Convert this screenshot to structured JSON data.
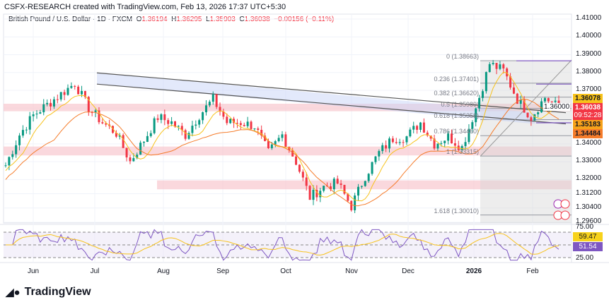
{
  "credit": "CSFX-RESEARCH created with TradingView.com, Feb 13, 2026 17:37 UTC+5:30",
  "legend": {
    "symbol": "British Pound / U.S. Dollar · 1D · FXCM",
    "o_label": "O",
    "o": "1.36194",
    "h_label": "H",
    "h": "1.36295",
    "l_label": "L",
    "l": "1.35903",
    "c_label": "C",
    "c": "1.36038",
    "change": "−0.00156 (−0.11%)"
  },
  "price_axis": [
    "1.41000",
    "1.40000",
    "1.39000",
    "1.38000",
    "1.37000",
    "1.36000",
    "1.34000",
    "1.33000",
    "1.32000",
    "1.31200",
    "1.30400",
    "1.29600"
  ],
  "price_axis_values": [
    1.41,
    1.4,
    1.39,
    1.38,
    1.37,
    1.36,
    1.34,
    1.33,
    1.32,
    1.312,
    1.304,
    1.296
  ],
  "tags": {
    "ma_fast": "1.36078",
    "last": "1.36038",
    "countdown": "09:52:28",
    "level": "1.35183",
    "ma_slow": "1.34484"
  },
  "fib_levels": [
    {
      "label": "0 (1.38663)",
      "price": 1.38663
    },
    {
      "label": "0.236 (1.37401)",
      "price": 1.37401
    },
    {
      "label": "0.382 (1.36620)",
      "price": 1.3662
    },
    {
      "label": "0.5 (1.35989)",
      "price": 1.35989
    },
    {
      "label": "0.618 (1.35358)",
      "price": 1.35358
    },
    {
      "label": "0.786 (1.34460)",
      "price": 1.3446
    },
    {
      "label": "1 (1.33315)",
      "price": 1.33315
    },
    {
      "label": "1.618 (1.30010)",
      "price": 1.3001
    }
  ],
  "rsi_axis": [
    "75.00",
    "25.00"
  ],
  "rsi_tags": {
    "ma": "59.47",
    "rsi": "51.54"
  },
  "dates": [
    "Jun",
    "Jul",
    "Aug",
    "Sep",
    "Oct",
    "Nov",
    "Dec",
    "2026",
    "Feb"
  ],
  "price_series": [
    1.328,
    1.345,
    1.356,
    1.362,
    1.368,
    1.374,
    1.36,
    1.352,
    1.346,
    1.33,
    1.342,
    1.355,
    1.352,
    1.345,
    1.356,
    1.365,
    1.352,
    1.352,
    1.35,
    1.335,
    1.345,
    1.33,
    1.31,
    1.316,
    1.318,
    1.305,
    1.322,
    1.335,
    1.343,
    1.344,
    1.352,
    1.34,
    1.344,
    1.338,
    1.36,
    1.385,
    1.381,
    1.365,
    1.355,
    1.366,
    1.3604
  ],
  "colors": {
    "up": "#089981",
    "down": "#f23645",
    "ma_fast": "#f7c21b",
    "ma_slow": "#f57c2b",
    "rsi": "#7e57c2"
  },
  "brand": "TradingView"
}
